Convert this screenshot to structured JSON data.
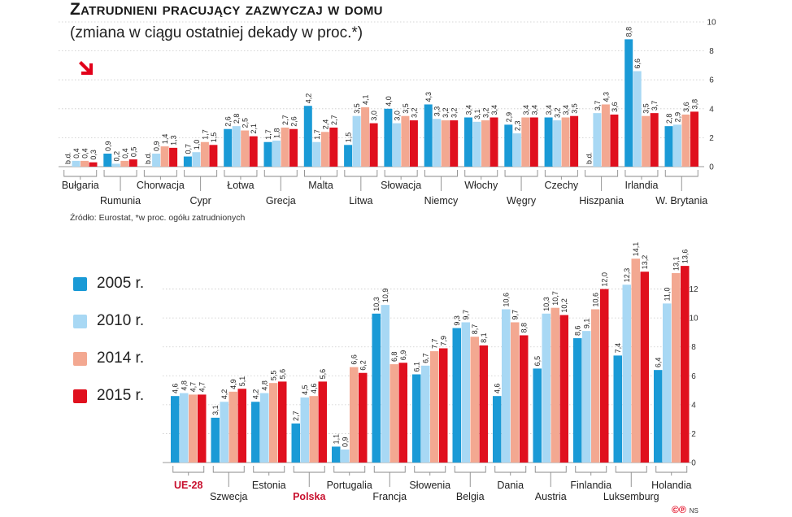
{
  "title": "Zatrudnieni pracujący zazwyczaj w domu",
  "subtitle": "(zmiana w ciągu ostatniej dekady w proc.*)",
  "source": "Źródło: Eurostat, *w proc. ogółu zatrudnionych",
  "icons": {
    "trend": "arrow-down-right-icon"
  },
  "legend": [
    {
      "label": "2005 r.",
      "color": "#1a9ad6"
    },
    {
      "label": "2010 r.",
      "color": "#a8d8f4"
    },
    {
      "label": "2014 r.",
      "color": "#f3a891"
    },
    {
      "label": "2015 r.",
      "color": "#e0101e"
    }
  ],
  "copyright": "©℗",
  "initials": "NS",
  "chart_data": [
    {
      "type": "bar",
      "series_names": [
        "2005 r.",
        "2010 r.",
        "2014 r.",
        "2015 r."
      ],
      "ylim": [
        0,
        10
      ],
      "yticks": [
        0,
        2,
        4,
        6,
        8,
        10
      ],
      "categories": [
        "Bułgaria",
        "Rumunia",
        "Chorwacja",
        "Cypr",
        "Łotwa",
        "Grecja",
        "Malta",
        "Litwa",
        "Słowacja",
        "Niemcy",
        "Włochy",
        "Węgry",
        "Czechy",
        "Hiszpania",
        "Irlandia",
        "W. Brytania"
      ],
      "values": [
        [
          null,
          0.4,
          0.4,
          0.3
        ],
        [
          0.9,
          0.2,
          0.4,
          0.5
        ],
        [
          null,
          0.9,
          1.4,
          1.3
        ],
        [
          0.7,
          1.0,
          1.7,
          1.5
        ],
        [
          2.6,
          2.8,
          2.5,
          2.1
        ],
        [
          1.7,
          1.8,
          2.7,
          2.6
        ],
        [
          4.2,
          1.7,
          2.4,
          2.7
        ],
        [
          1.5,
          3.5,
          4.1,
          3.0
        ],
        [
          4.0,
          3.0,
          3.5,
          3.2
        ],
        [
          4.3,
          3.3,
          3.2,
          3.2
        ],
        [
          3.4,
          3.1,
          3.2,
          3.4
        ],
        [
          2.9,
          2.3,
          3.4,
          3.4
        ],
        [
          3.4,
          3.2,
          3.4,
          3.5
        ],
        [
          null,
          3.7,
          4.3,
          3.6
        ],
        [
          8.8,
          6.6,
          3.5,
          3.7
        ],
        [
          2.8,
          2.9,
          3.6,
          3.8
        ]
      ],
      "value_labels": [
        [
          "b.d.",
          "0,4",
          "0,4",
          "0,3"
        ],
        [
          "0,9",
          "0,2",
          "0,4",
          "0,5"
        ],
        [
          "b.d.",
          "0,9",
          "1,4",
          "1,3"
        ],
        [
          "0,7",
          "1,0",
          "1,7",
          "1,5"
        ],
        [
          "2,6",
          "2,8",
          "2,5",
          "2,1"
        ],
        [
          "1,7",
          "1,8",
          "2,7",
          "2,6"
        ],
        [
          "4,2",
          "1,7",
          "2,4",
          "2,7"
        ],
        [
          "1,5",
          "3,5",
          "4,1",
          "3,0"
        ],
        [
          "4,0",
          "3,0",
          "3,5",
          "3,2"
        ],
        [
          "4,3",
          "3,3",
          "3,2",
          "3,2"
        ],
        [
          "3,4",
          "3,1",
          "3,2",
          "3,4"
        ],
        [
          "2,9",
          "2,3",
          "3,4",
          "3,4"
        ],
        [
          "3,4",
          "3,2",
          "3,4",
          "3,5"
        ],
        [
          "b.d.",
          "3,7",
          "4,3",
          "3,6"
        ],
        [
          "8,8",
          "6,6",
          "3,5",
          "3,7"
        ],
        [
          "2,8",
          "2,9",
          "3,6",
          "3,8"
        ]
      ]
    },
    {
      "type": "bar",
      "series_names": [
        "2005 r.",
        "2010 r.",
        "2014 r.",
        "2015 r."
      ],
      "ylim": [
        0,
        14
      ],
      "yticks": [
        0,
        2,
        4,
        6,
        8,
        10,
        12
      ],
      "categories": [
        "UE-28",
        "Szwecja",
        "Estonia",
        "Polska",
        "Portugalia",
        "Francja",
        "Słowenia",
        "Belgia",
        "Dania",
        "Austria",
        "Finlandia",
        "Luksemburg",
        "Holandia"
      ],
      "highlighted_categories": [
        "UE-28",
        "Polska"
      ],
      "highlight_color": "#c8102e",
      "values": [
        [
          4.6,
          4.8,
          4.7,
          4.7
        ],
        [
          3.1,
          4.2,
          4.9,
          5.1
        ],
        [
          4.2,
          4.8,
          5.5,
          5.6
        ],
        [
          2.7,
          4.5,
          4.6,
          5.6
        ],
        [
          1.1,
          0.9,
          6.6,
          6.2
        ],
        [
          10.3,
          10.9,
          6.8,
          6.9
        ],
        [
          6.1,
          6.7,
          7.7,
          7.9
        ],
        [
          9.3,
          9.7,
          8.7,
          8.1
        ],
        [
          4.6,
          10.6,
          9.7,
          8.8
        ],
        [
          6.5,
          10.3,
          10.7,
          10.2
        ],
        [
          8.6,
          9.1,
          10.6,
          12.0
        ],
        [
          7.4,
          12.3,
          14.1,
          13.2
        ],
        [
          6.4,
          11.0,
          13.1,
          13.6
        ]
      ],
      "value_labels": [
        [
          "4,6",
          "4,8",
          "4,7",
          "4,7"
        ],
        [
          "3,1",
          "4,2",
          "4,9",
          "5,1"
        ],
        [
          "4,2",
          "4,8",
          "5,5",
          "5,6"
        ],
        [
          "2,7",
          "4,5",
          "4,6",
          "5,6"
        ],
        [
          "1,1",
          "0,9",
          "6,6",
          "6,2"
        ],
        [
          "10,3",
          "10,9",
          "6,8",
          "6,9"
        ],
        [
          "6,1",
          "6,7",
          "7,7",
          "7,9"
        ],
        [
          "9,3",
          "9,7",
          "8,7",
          "8,1"
        ],
        [
          "4,6",
          "10,6",
          "9,7",
          "8,8"
        ],
        [
          "6,5",
          "10,3",
          "10,7",
          "10,2"
        ],
        [
          "8,6",
          "9,1",
          "10,6",
          "12,0"
        ],
        [
          "7,4",
          "12,3",
          "14,1",
          "13,2"
        ],
        [
          "6,4",
          "11,0",
          "13,1",
          "13,6"
        ]
      ]
    }
  ]
}
